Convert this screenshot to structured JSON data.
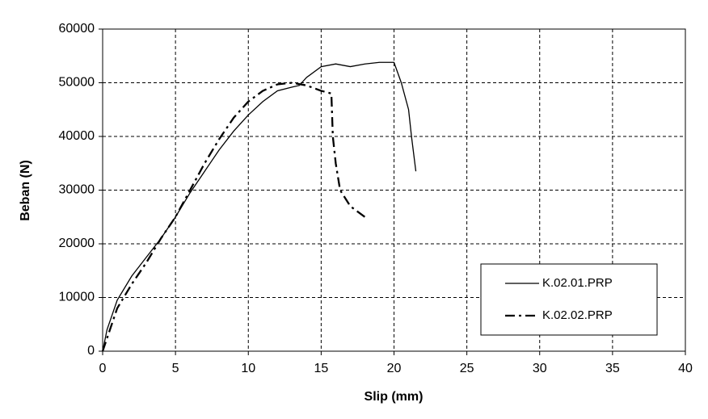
{
  "chart_data": {
    "type": "line",
    "x_label": "Slip (mm)",
    "y_label": "Beban (N)",
    "xlim": [
      0,
      40
    ],
    "xticks": [
      0,
      5,
      10,
      15,
      20,
      25,
      30,
      35,
      40
    ],
    "ylim": [
      0,
      60000
    ],
    "yticks": [
      0,
      10000,
      20000,
      30000,
      40000,
      50000,
      60000
    ],
    "grid": true,
    "legend": "lower right",
    "series": [
      {
        "name": "K.02.01.PRP",
        "color": "#000000",
        "dash": "solid",
        "x": [
          0,
          0.3,
          1,
          2,
          3,
          4,
          5,
          6,
          7,
          8,
          9,
          10,
          11,
          12,
          13,
          13.5,
          14,
          15,
          16,
          17,
          18,
          19,
          20,
          20.5,
          21,
          21.2,
          21.5
        ],
        "values": [
          0,
          4000,
          9500,
          14000,
          17500,
          21000,
          25000,
          29500,
          33500,
          37500,
          41000,
          44000,
          46500,
          48500,
          49200,
          49500,
          51000,
          53000,
          53500,
          53000,
          53500,
          53800,
          53800,
          50000,
          45000,
          40000,
          33500
        ]
      },
      {
        "name": "K.02.02.PRP",
        "color": "#000000",
        "dash": "dashdot",
        "x": [
          0,
          0.5,
          1,
          2,
          3,
          4,
          5,
          6,
          7,
          8,
          9,
          10,
          11,
          12,
          13,
          14,
          15,
          15.7,
          15.8,
          16,
          16.3,
          17,
          18
        ],
        "values": [
          0,
          4000,
          8000,
          12500,
          16500,
          21000,
          25000,
          30000,
          35000,
          39500,
          43500,
          46500,
          48500,
          49700,
          50000,
          49500,
          48500,
          48000,
          40000,
          35000,
          30000,
          27000,
          25000
        ]
      }
    ]
  }
}
